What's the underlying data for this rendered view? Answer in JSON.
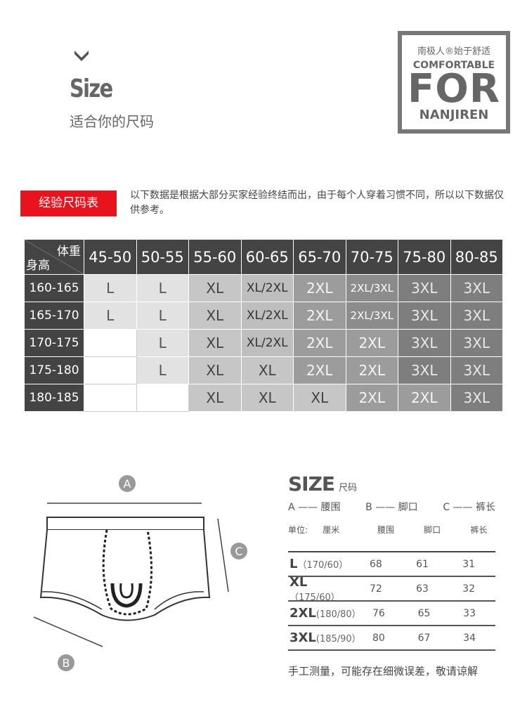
{
  "header": {
    "title": "Size",
    "subtitle": "适合你的尺码",
    "chevron_icon": "chevron-down-icon"
  },
  "logo": {
    "line1": "南极人®始于舒适",
    "line2": "COMFORTABLE",
    "line3": "FOR",
    "line4": "NANJIREN"
  },
  "experience": {
    "badge": "经验尺码表",
    "note": "以下数据是根据大部分买家经验终结而出，由于每个人穿着习惯不同，所以以下数据仅供参考。",
    "accent": "#e8131d"
  },
  "size_table": {
    "weight_label": "体重",
    "height_label": "身高",
    "columns": [
      "45-50",
      "50-55",
      "55-60",
      "60-65",
      "65-70",
      "70-75",
      "75-80",
      "80-85"
    ],
    "rows": [
      {
        "height": "160-165",
        "sizes": [
          "L",
          "L",
          "XL",
          "XL/2XL",
          "2XL",
          "2XL/3XL",
          "3XL",
          "3XL"
        ]
      },
      {
        "height": "165-170",
        "sizes": [
          "L",
          "L",
          "XL",
          "XL/2XL",
          "2XL",
          "2XL/3XL",
          "3XL",
          "3XL"
        ]
      },
      {
        "height": "170-175",
        "sizes": [
          "",
          "L",
          "XL",
          "XL/2XL",
          "2XL",
          "2XL",
          "3XL",
          "3XL"
        ]
      },
      {
        "height": "175-180",
        "sizes": [
          "",
          "L",
          "XL",
          "XL",
          "2XL",
          "2XL",
          "3XL",
          "3XL"
        ]
      },
      {
        "height": "180-185",
        "sizes": [
          "",
          "",
          "XL",
          "XL",
          "XL",
          "2XL",
          "2XL",
          "3XL"
        ]
      }
    ]
  },
  "diagram": {
    "label_a": "A",
    "label_b": "B",
    "label_c": "C"
  },
  "spec": {
    "title": "SIZE",
    "title_sub": "尺码",
    "legend": [
      "A —— 腰围",
      "B —— 脚口",
      "C —— 裤长"
    ],
    "unit_label": "单位:",
    "unit": "厘米",
    "headers": [
      "腰围",
      "脚口",
      "裤长"
    ],
    "rows": [
      {
        "size": "L",
        "ref": "（170/60）",
        "values": [
          "68",
          "61",
          "31"
        ]
      },
      {
        "size": "XL",
        "ref": "（175/60）",
        "values": [
          "72",
          "63",
          "32"
        ]
      },
      {
        "size": "2XL",
        "ref": "(180/80）",
        "values": [
          "76",
          "65",
          "33"
        ]
      },
      {
        "size": "3XL",
        "ref": "(185/90）",
        "values": [
          "80",
          "67",
          "34"
        ]
      }
    ],
    "footnote": "手工测量，可能存在细微误差，敬请谅解"
  }
}
